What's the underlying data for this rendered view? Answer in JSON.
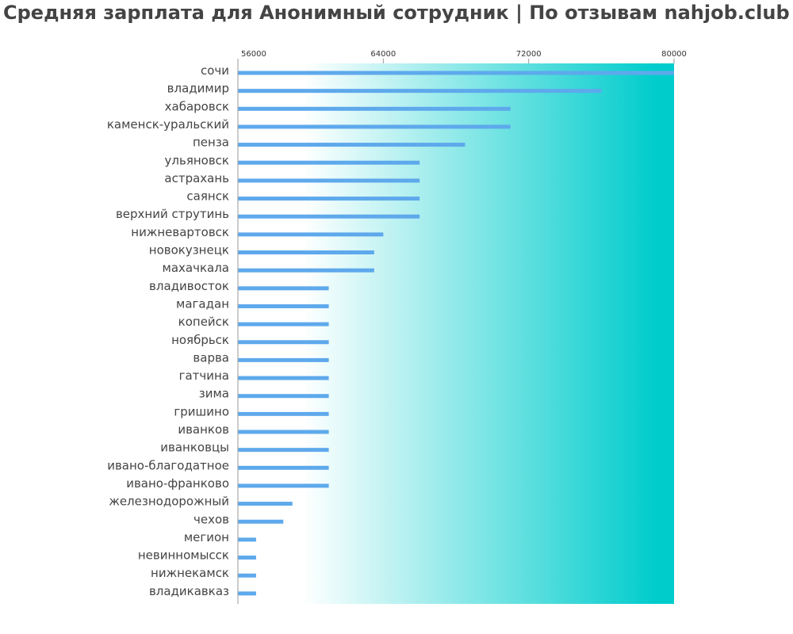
{
  "chart_data": {
    "type": "bar",
    "orientation": "horizontal",
    "title": "Средняя зарплата для Анонимный сотрудник | По отзывам nahjob.club",
    "xlabel": "",
    "ylabel": "",
    "xlim": [
      56000,
      80000
    ],
    "ticks": [
      "56000",
      "64000",
      "72000",
      "80000"
    ],
    "tick_values": [
      56000,
      64000,
      72000,
      80000
    ],
    "grid": false,
    "legend": "none",
    "categories": [
      "сочи",
      "владимир",
      "хабаровск",
      "каменск-уральский",
      "пенза",
      "ульяновск",
      "астрахань",
      "саянск",
      "верхний струтинь",
      "нижневартовск",
      "новокузнецк",
      "махачкала",
      "владивосток",
      "магадан",
      "копейск",
      "ноябрьск",
      "варва",
      "гатчина",
      "зима",
      "гришино",
      "иванков",
      "иванковцы",
      "ивано-благодатное",
      "ивано-франково",
      "железнодорожный",
      "чехов",
      "мегион",
      "невинномысск",
      "нижнекамск",
      "владикавказ"
    ],
    "values": [
      80000,
      76000,
      71000,
      71000,
      68500,
      66000,
      66000,
      66000,
      66000,
      64000,
      63500,
      63500,
      61000,
      61000,
      61000,
      61000,
      61000,
      61000,
      61000,
      61000,
      61000,
      61000,
      61000,
      61000,
      59000,
      58500,
      57000,
      57000,
      57000,
      57000
    ],
    "colors": {
      "bar": "#5ea9ec",
      "gradient_start": "#ffffff",
      "gradient_end": "#00cccc",
      "axis": "#999999"
    }
  }
}
